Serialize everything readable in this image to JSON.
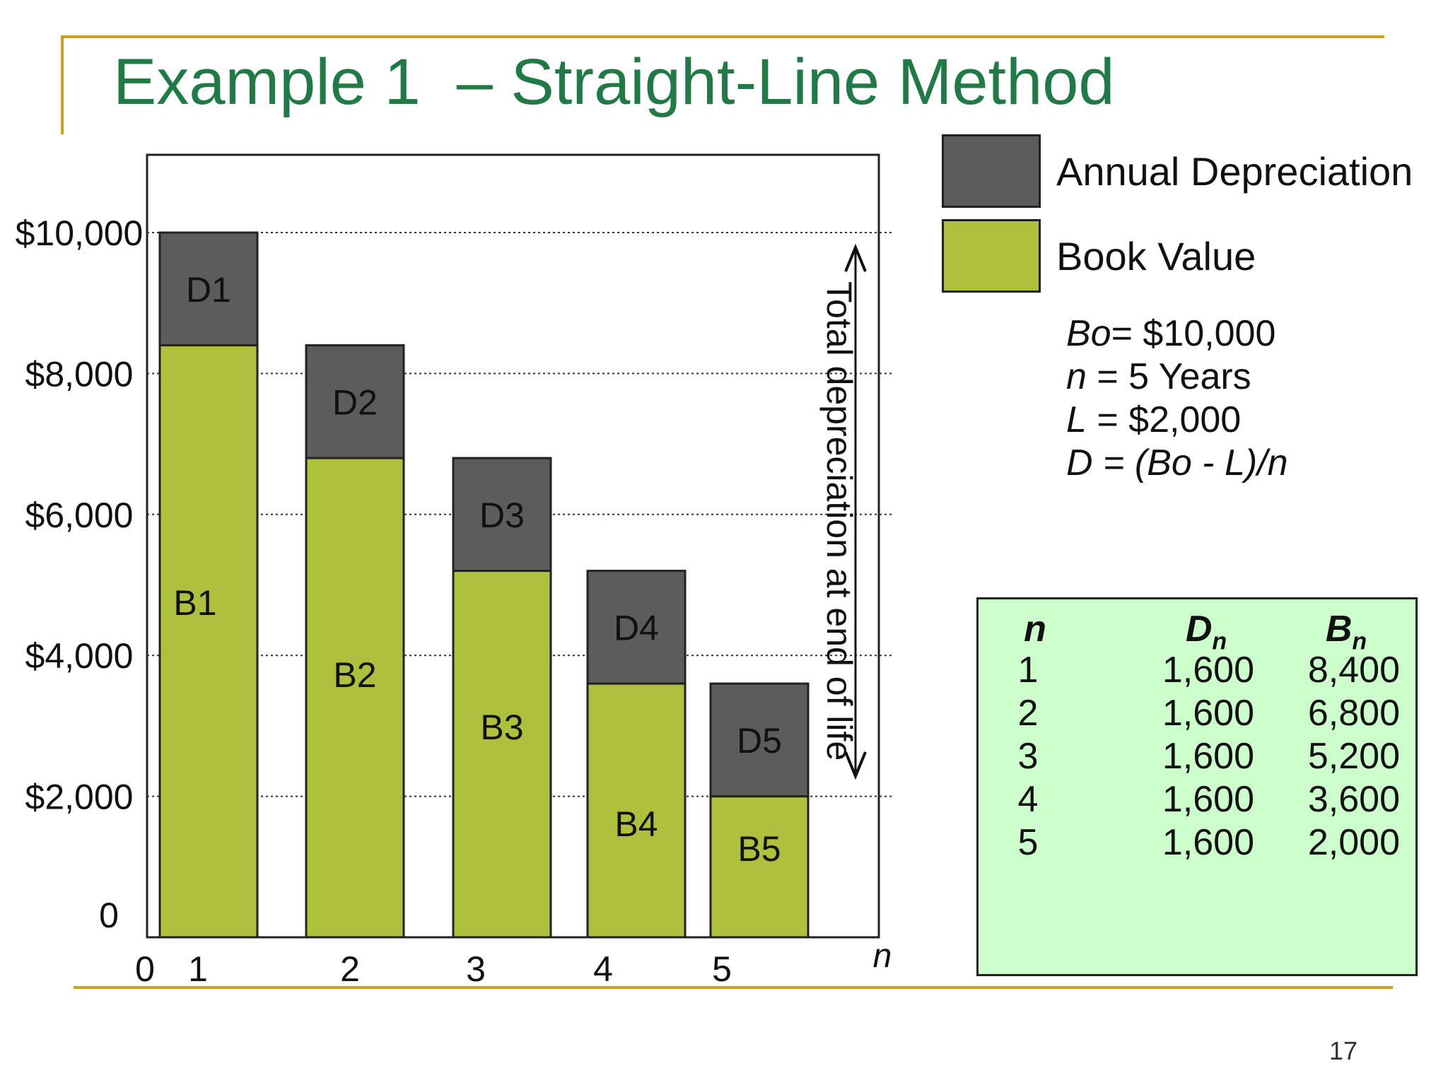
{
  "title": "Example 1  – Straight-Line Method",
  "page_number": "17",
  "legend": [
    {
      "label": "Annual Depreciation",
      "color": "#5c5c5c"
    },
    {
      "label": "Book Value",
      "color": "#afc03c"
    }
  ],
  "params": {
    "bo_symbol": "Bo",
    "bo_rest": "= $10,000",
    "n_symbol": "n",
    "n_rest": " = 5 Years",
    "l_symbol": "L",
    "l_rest": " = $2,000",
    "d_formula": "D = (Bo - L)/n"
  },
  "table": {
    "headers": {
      "n": "n",
      "d": "D",
      "d_sub": "n",
      "b": "B",
      "b_sub": "n"
    },
    "rows": [
      {
        "n": "1",
        "d": "1,600",
        "b": "8,400"
      },
      {
        "n": "2",
        "d": "1,600",
        "b": "6,800"
      },
      {
        "n": "3",
        "d": "1,600",
        "b": "5,200"
      },
      {
        "n": "4",
        "d": "1,600",
        "b": "3,600"
      },
      {
        "n": "5",
        "d": "1,600",
        "b": "2,000"
      }
    ]
  },
  "chart_data": {
    "type": "bar",
    "stacked": true,
    "categories": [
      "1",
      "2",
      "3",
      "4",
      "5"
    ],
    "x_tick_labels": [
      "0",
      "1",
      "2",
      "3",
      "4",
      "5"
    ],
    "xlabel": "n",
    "y_tick_labels": [
      "0",
      "$2,000",
      "$4,000",
      "$6,000",
      "$8,000",
      "$10,000"
    ],
    "y_tick_values": [
      0,
      2000,
      4000,
      6000,
      8000,
      10000
    ],
    "ylim": [
      0,
      10000
    ],
    "grid": "dotted horizontal at $2,000 intervals",
    "series": [
      {
        "name": "Book Value",
        "values": [
          8400,
          6800,
          5200,
          3600,
          2000
        ],
        "labels": [
          "B1",
          "B2",
          "B3",
          "B4",
          "B5"
        ],
        "color": "#afc03c"
      },
      {
        "name": "Annual Depreciation",
        "values": [
          1600,
          1600,
          1600,
          1600,
          1600
        ],
        "labels": [
          "D1",
          "D2",
          "D3",
          "D4",
          "D5"
        ],
        "color": "#5c5c5c"
      }
    ],
    "annotation": "Total depreciation at end of life"
  }
}
